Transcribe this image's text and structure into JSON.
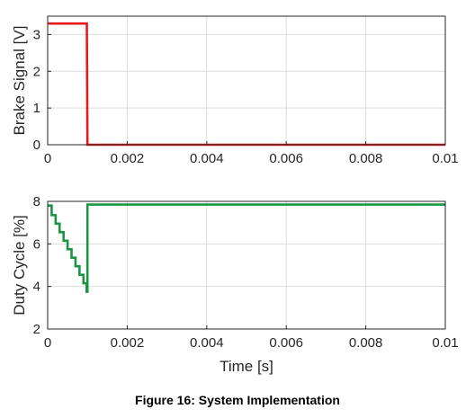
{
  "caption": "Figure 16: System Implementation",
  "chart_data": [
    {
      "type": "line",
      "ylabel": "Brake Signal [V]",
      "xlabel": "",
      "xlim": [
        0,
        0.01
      ],
      "ylim": [
        0,
        3.5
      ],
      "xticks": [
        0,
        0.002,
        0.004,
        0.006,
        0.008,
        0.01
      ],
      "xtick_labels": [
        "0",
        "0.002",
        "0.004",
        "0.006",
        "0.008",
        "0.01"
      ],
      "yticks": [
        0,
        1,
        2,
        3
      ],
      "ytick_labels": [
        "0",
        "1",
        "2",
        "3"
      ],
      "grid": true,
      "series": [
        {
          "color": "#e41a1c",
          "x": [
            0,
            0.000985,
            0.001,
            0.01
          ],
          "y": [
            3.3,
            3.3,
            0,
            0
          ]
        }
      ]
    },
    {
      "type": "line",
      "ylabel": "Duty Cycle [%]",
      "xlabel": "Time [s]",
      "xlim": [
        0,
        0.01
      ],
      "ylim": [
        2,
        8
      ],
      "xticks": [
        0,
        0.002,
        0.004,
        0.006,
        0.008,
        0.01
      ],
      "xtick_labels": [
        "0",
        "0.002",
        "0.004",
        "0.006",
        "0.008",
        "0.01"
      ],
      "yticks": [
        2,
        4,
        6,
        8
      ],
      "ytick_labels": [
        "2",
        "4",
        "6",
        "8"
      ],
      "grid": true,
      "series": [
        {
          "color": "#1a9641",
          "x": [
            0,
            0.0001,
            0.0001,
            0.0002,
            0.0002,
            0.0003,
            0.0003,
            0.0004,
            0.0004,
            0.0005,
            0.0005,
            0.0006,
            0.0006,
            0.0007,
            0.0007,
            0.0008,
            0.0008,
            0.0009,
            0.0009,
            0.00098,
            0.00098,
            0.001,
            0.001,
            0.01
          ],
          "y": [
            7.8,
            7.8,
            7.35,
            7.35,
            6.95,
            6.95,
            6.55,
            6.55,
            6.15,
            6.15,
            5.75,
            5.75,
            5.35,
            5.35,
            4.95,
            4.95,
            4.55,
            4.55,
            4.15,
            4.15,
            3.75,
            3.75,
            7.85,
            7.85
          ]
        }
      ]
    }
  ]
}
